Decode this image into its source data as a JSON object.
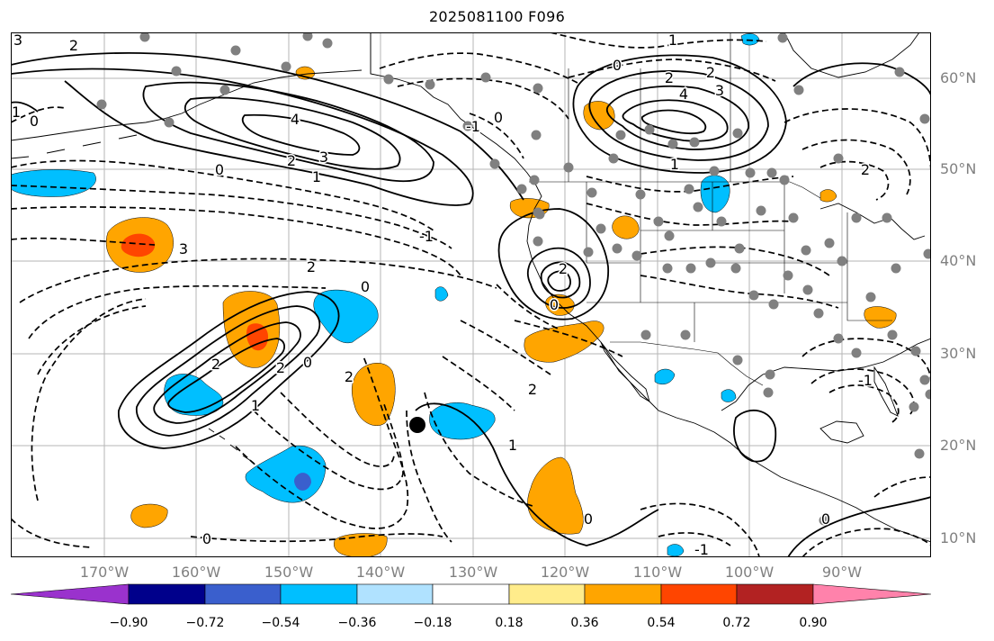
{
  "title": "2025081100 F096",
  "axes": {
    "lon_labels": [
      "170°W",
      "160°W",
      "150°W",
      "140°W",
      "130°W",
      "120°W",
      "110°W",
      "100°W",
      "90°W"
    ],
    "lat_labels": [
      "60°N",
      "50°N",
      "40°N",
      "30°N",
      "20°N",
      "10°N"
    ]
  },
  "contour_labels": [
    "3",
    "2",
    "0",
    "1",
    "4",
    "3",
    "2",
    "1",
    "0",
    "3",
    "2",
    "0",
    "2",
    "0",
    "2",
    "1",
    "2",
    "0",
    "-1",
    "4",
    "3",
    "2",
    "0",
    "1",
    "2",
    "1",
    "2",
    "0",
    "-1",
    "0",
    "1",
    "2",
    "0",
    "-1",
    "2",
    "0",
    "-1"
  ],
  "marker": {
    "name": "center-marker",
    "lon": -135.2,
    "lat": 22.4
  },
  "colorbar": {
    "ticks": [
      "−0.90",
      "−0.72",
      "−0.54",
      "−0.36",
      "−0.18",
      "0.18",
      "0.36",
      "0.54",
      "0.72",
      "0.90"
    ],
    "colors": [
      "#9a32cd",
      "#00008b",
      "#3a5fcd",
      "#00bfff",
      "#b0e2ff",
      "#ffffff",
      "#ffec8b",
      "#ffa500",
      "#ff4500",
      "#b22222",
      "#ff82ab"
    ]
  }
}
